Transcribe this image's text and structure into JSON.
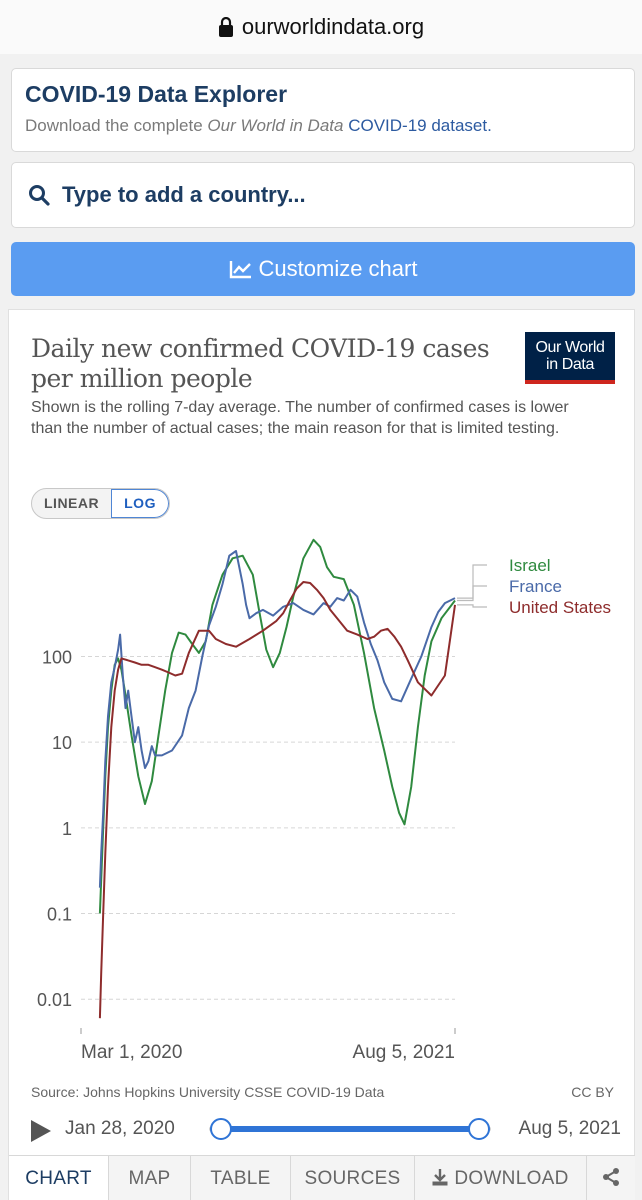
{
  "browser": {
    "domain": "ourworldindata.org"
  },
  "explorer": {
    "title": "COVID-19 Data Explorer",
    "sub_prefix": "Download the complete",
    "sub_italic": "Our World in Data",
    "sub_link": "COVID-19 dataset."
  },
  "search": {
    "placeholder": "Type to add a country..."
  },
  "customize": {
    "label": "Customize chart"
  },
  "logo": {
    "line1": "Our World",
    "line2": "in Data"
  },
  "scale": {
    "linear": "LINEAR",
    "log": "LOG"
  },
  "footer": {
    "source": "Source: Johns Hopkins University CSSE COVID-19 Data",
    "license": "CC BY"
  },
  "timeline": {
    "start": "Jan 28, 2020",
    "end": "Aug 5, 2021",
    "selected_start": 0,
    "selected_end": 1
  },
  "tabs": [
    "CHART",
    "MAP",
    "TABLE",
    "SOURCES",
    "DOWNLOAD"
  ],
  "colors": {
    "israel": "#2f8a3f",
    "france": "#4a6aa8",
    "united_states": "#8e2c2c",
    "accent": "#5a9cf1",
    "brand_navy": "#002147"
  },
  "chart_data": {
    "type": "line",
    "title": "Daily new confirmed COVID-19 cases per million people",
    "subtitle": "Shown is the rolling 7-day average. The number of confirmed cases is lower than the number of actual cases; the main reason for that is limited testing.",
    "yscale": "log",
    "ylim": [
      0.005,
      2000
    ],
    "yticks": [
      0.01,
      0.1,
      1,
      10,
      100
    ],
    "ytick_labels": [
      "0.01",
      "0.1",
      "1",
      "10",
      "100"
    ],
    "xlim": [
      0,
      555
    ],
    "xticks": [
      {
        "day": 33,
        "label": "Mar 1, 2020"
      },
      {
        "day": 555,
        "label": "Aug 5, 2021"
      }
    ],
    "x_unit": "days since Jan 28, 2020",
    "series": [
      {
        "name": "Israel",
        "x": [
          28,
          30,
          33,
          36,
          40,
          45,
          50,
          55,
          60,
          65,
          75,
          85,
          95,
          105,
          115,
          125,
          135,
          145,
          155,
          165,
          175,
          185,
          195,
          210,
          225,
          240,
          255,
          265,
          275,
          285,
          295,
          305,
          315,
          330,
          345,
          355,
          365,
          375,
          390,
          405,
          420,
          435,
          450,
          462,
          472,
          480,
          490,
          500,
          510,
          520,
          535,
          555
        ],
        "values": [
          0.1,
          0.25,
          1.0,
          4.0,
          15,
          40,
          80,
          95,
          70,
          40,
          12,
          4,
          1.9,
          3.5,
          12,
          40,
          110,
          190,
          180,
          140,
          110,
          150,
          400,
          900,
          1400,
          1500,
          900,
          320,
          120,
          75,
          110,
          220,
          500,
          1400,
          2300,
          1900,
          1100,
          850,
          800,
          400,
          110,
          25,
          8,
          3,
          1.5,
          1.1,
          3.0,
          15,
          60,
          150,
          280,
          450
        ]
      },
      {
        "name": "France",
        "x": [
          28,
          30,
          33,
          36,
          40,
          45,
          50,
          55,
          58,
          62,
          66,
          70,
          75,
          80,
          85,
          90,
          95,
          100,
          105,
          110,
          120,
          135,
          150,
          160,
          170,
          180,
          190,
          200,
          210,
          220,
          230,
          240,
          245,
          250,
          260,
          270,
          285,
          300,
          315,
          330,
          345,
          360,
          370,
          380,
          390,
          400,
          410,
          420,
          430,
          440,
          450,
          462,
          475,
          490,
          505,
          520,
          530,
          540,
          555
        ],
        "values": [
          0.2,
          0.5,
          1.5,
          6,
          20,
          50,
          75,
          120,
          180,
          60,
          25,
          40,
          20,
          10,
          15,
          8,
          5,
          6,
          9,
          7,
          7,
          8,
          12,
          25,
          40,
          100,
          230,
          380,
          700,
          1500,
          1700,
          700,
          400,
          280,
          320,
          350,
          300,
          380,
          420,
          350,
          310,
          420,
          380,
          480,
          450,
          600,
          500,
          250,
          140,
          90,
          50,
          32,
          30,
          55,
          100,
          220,
          330,
          420,
          480
        ]
      },
      {
        "name": "United States",
        "x": [
          28,
          30,
          33,
          36,
          40,
          45,
          50,
          55,
          60,
          70,
          80,
          90,
          100,
          110,
          120,
          130,
          140,
          150,
          160,
          175,
          190,
          200,
          215,
          230,
          250,
          270,
          290,
          300,
          310,
          320,
          330,
          340,
          350,
          360,
          370,
          380,
          395,
          410,
          425,
          435,
          445,
          455,
          465,
          475,
          485,
          500,
          520,
          540,
          555
        ],
        "values": [
          0.006,
          0.02,
          0.1,
          0.5,
          3,
          15,
          40,
          70,
          95,
          90,
          85,
          80,
          80,
          75,
          70,
          65,
          60,
          63,
          110,
          200,
          200,
          160,
          140,
          130,
          160,
          200,
          260,
          320,
          450,
          620,
          740,
          720,
          600,
          480,
          350,
          280,
          200,
          180,
          160,
          170,
          200,
          210,
          170,
          130,
          90,
          50,
          35,
          60,
          400
        ]
      }
    ],
    "legend": [
      "Israel",
      "France",
      "United States"
    ],
    "legend_placement": "right"
  }
}
